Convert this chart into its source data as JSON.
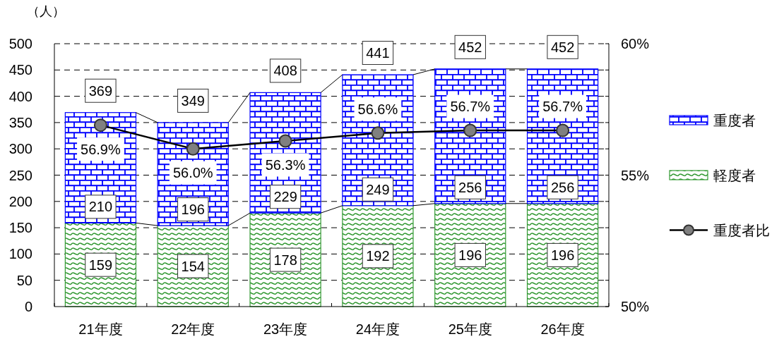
{
  "chart_data": {
    "type": "bar",
    "stacked": true,
    "ylabel": "（人）",
    "categories": [
      "21年度",
      "22年度",
      "23年度",
      "24年度",
      "25年度",
      "26年度"
    ],
    "series": [
      {
        "name": "軽度者",
        "color": "#339933",
        "values": [
          159,
          154,
          178,
          192,
          196,
          196
        ]
      },
      {
        "name": "重度者",
        "color": "#0000ff",
        "values": [
          210,
          196,
          229,
          249,
          256,
          256
        ]
      },
      {
        "name": "重度者比",
        "type": "line",
        "axis": "y2",
        "color": "#000000",
        "values": [
          56.9,
          56.0,
          56.3,
          56.6,
          56.7,
          56.7
        ],
        "value_labels": [
          "56.9%",
          "56.0%",
          "56.3%",
          "56.6%",
          "56.7%",
          "56.7%"
        ]
      }
    ],
    "ylim": [
      0,
      500
    ],
    "yticks": [
      0,
      50,
      100,
      150,
      200,
      250,
      300,
      350,
      400,
      450,
      500
    ],
    "y2lim": [
      50,
      60
    ],
    "y2ticks": [
      {
        "value": 50,
        "label": "50%"
      },
      {
        "value": 51,
        "label": null
      },
      {
        "value": 52,
        "label": null
      },
      {
        "value": 53,
        "label": null
      },
      {
        "value": 54,
        "label": null
      },
      {
        "value": 55,
        "label": "55%"
      },
      {
        "value": 56,
        "label": null
      },
      {
        "value": 57,
        "label": null
      },
      {
        "value": 58,
        "label": null
      },
      {
        "value": 59,
        "label": null
      },
      {
        "value": 60,
        "label": "60%"
      }
    ],
    "grid": "y",
    "legend": "right",
    "marker": "circle",
    "data_labels": true,
    "totals": [
      "369",
      "349",
      "408",
      "441",
      "452",
      "452"
    ]
  }
}
